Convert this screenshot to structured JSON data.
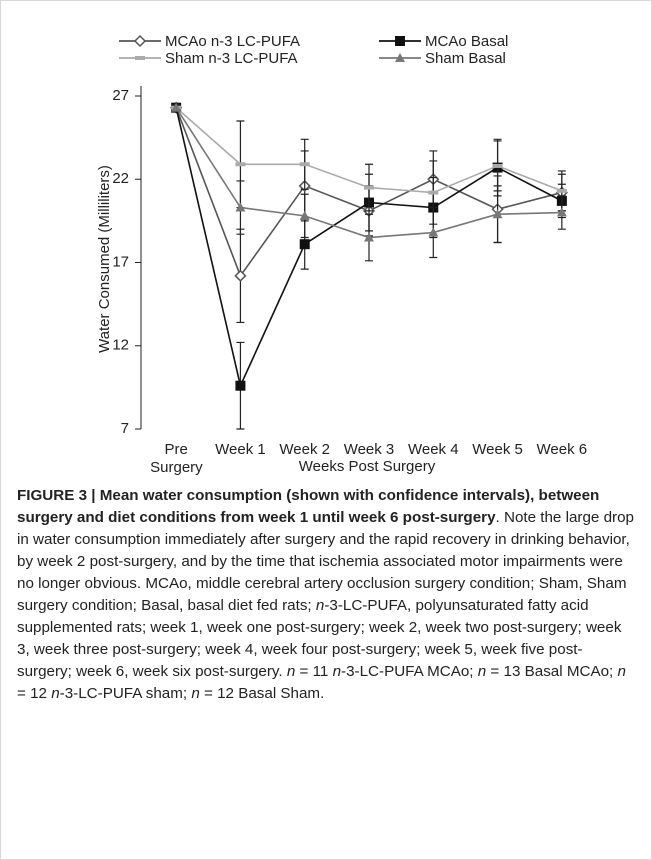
{
  "chart_data": {
    "type": "line",
    "categories": [
      "Pre Surgery",
      "Week 1",
      "Week 2",
      "Week 3",
      "Week 4",
      "Week 5",
      "Week 6"
    ],
    "y_label": "Water Consumed  (Milliliters)",
    "x_label": "Weeks Post Surgery",
    "ylim": [
      7,
      27
    ],
    "yticks": [
      7,
      12,
      17,
      22,
      27
    ],
    "series": [
      {
        "name": "MCAo n-3 LC-PUFA",
        "color": "#555555",
        "marker": "diamond",
        "values": [
          26.3,
          16.2,
          21.6,
          20.1,
          22.0,
          20.2,
          21.2
        ],
        "errors": [
          0.2,
          2.8,
          2.1,
          1.5,
          1.7,
          2.0,
          1.1
        ]
      },
      {
        "name": "MCAo Basal",
        "color": "#111111",
        "marker": "square",
        "values": [
          26.3,
          9.6,
          18.1,
          20.6,
          20.3,
          22.7,
          20.7
        ],
        "errors": [
          0.2,
          2.6,
          1.5,
          1.7,
          1.8,
          1.7,
          1.0
        ]
      },
      {
        "name": "Sham n-3 LC-PUFA",
        "color": "#aaaaaa",
        "marker": "dash",
        "values": [
          26.3,
          22.9,
          22.9,
          21.5,
          21.2,
          22.8,
          21.3
        ],
        "errors": [
          0.2,
          2.6,
          1.5,
          1.4,
          1.9,
          1.5,
          1.2
        ]
      },
      {
        "name": "Sham Basal",
        "color": "#777777",
        "marker": "triangle",
        "values": [
          26.3,
          20.3,
          19.8,
          18.5,
          18.8,
          19.9,
          20.0
        ],
        "errors": [
          0.2,
          1.6,
          1.3,
          1.4,
          1.5,
          1.7,
          1.0
        ]
      }
    ]
  },
  "caption": [
    {
      "text": "FIGURE 3 | Mean water consumption (shown with confidence intervals), between surgery and diet conditions from week 1 until week 6 post-surgery",
      "bold": true
    },
    {
      "text": ". Note the large drop in water consumption immediately after surgery and the rapid recovery in drinking behavior, by week 2 post-surgery, and by the time that ischemia associated motor impairments were no longer obvious. MCAo, middle cerebral artery occlusion surgery condition; Sham, Sham surgery condition; Basal, basal diet fed rats; "
    },
    {
      "text": "n",
      "italic": true
    },
    {
      "text": "-3-LC-PUFA, polyunsaturated fatty acid supplemented rats; week 1, week one post-surgery; week 2, week two post-surgery; week 3, week three post-surgery; week 4, week four post-surgery; week 5, week five post-surgery; week 6, week six post-surgery. "
    },
    {
      "text": "n",
      "italic": true
    },
    {
      "text": " = 11 "
    },
    {
      "text": "n",
      "italic": true
    },
    {
      "text": "-3-LC-PUFA MCAo; "
    },
    {
      "text": "n",
      "italic": true
    },
    {
      "text": " = 13 Basal MCAo; "
    },
    {
      "text": "n",
      "italic": true
    },
    {
      "text": " = 12 "
    },
    {
      "text": "n",
      "italic": true
    },
    {
      "text": "-3-LC-PUFA sham; "
    },
    {
      "text": "n",
      "italic": true
    },
    {
      "text": " = 12 Basal Sham."
    }
  ]
}
